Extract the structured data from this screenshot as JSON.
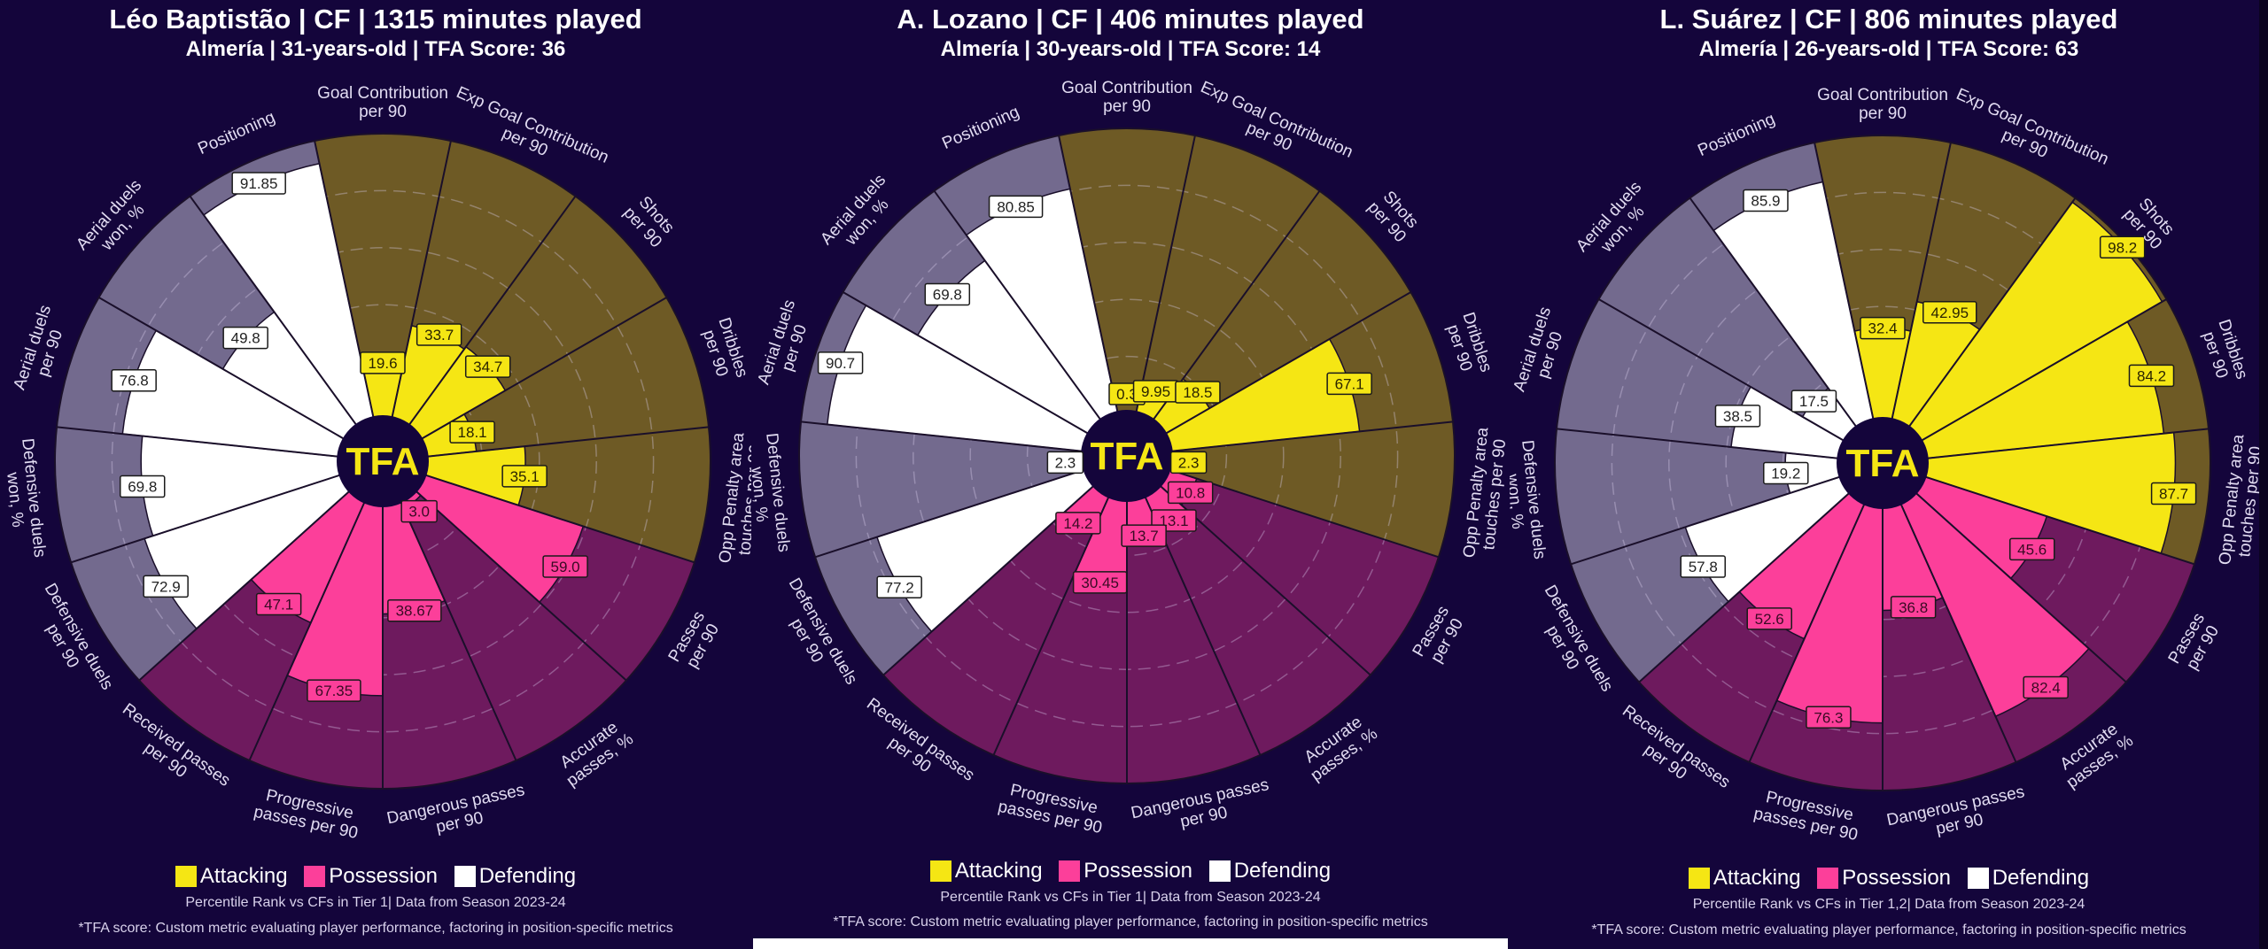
{
  "colors": {
    "background": "#14053b",
    "attacking": "#f5e614",
    "attacking_bg": "#6e5a25",
    "possession": "#fc3f9a",
    "possession_bg": "#6e1a5e",
    "defending": "#ffffff",
    "defending_bg": "#736a8e",
    "label_text": "#e2dcf2",
    "slice_border": "#1a0f2a"
  },
  "legend": [
    {
      "label": "Attacking",
      "color": "#f5e614"
    },
    {
      "label": "Possession",
      "color": "#fc3f9a"
    },
    {
      "label": "Defending",
      "color": "#ffffff"
    }
  ],
  "logo_text": "TFA",
  "footnote": "*TFA score: Custom metric evaluating player performance, factoring in position-specific metrics",
  "chart_data": [
    {
      "type": "pizza",
      "title": "Léo Baptistão | CF | 1315 minutes played",
      "subtitle": "Almería | 31-years-old | TFA Score: 36",
      "source_note": "Percentile Rank vs CFs in Tier 1| Data from Season 2023-24",
      "range": [
        0,
        100
      ],
      "metrics": [
        {
          "label": "Goal Contribution\nper 90",
          "value": 19.6,
          "group": "attacking"
        },
        {
          "label": "Exp Goal Contribution\nper 90",
          "value": 33.7,
          "group": "attacking"
        },
        {
          "label": "Shots\nper 90",
          "value": 34.7,
          "group": "attacking"
        },
        {
          "label": "Dribbles\nper 90",
          "value": 18.1,
          "group": "attacking"
        },
        {
          "label": "Opp Penalty area\ntouches per 90",
          "value": 35.1,
          "group": "attacking"
        },
        {
          "label": "Passes\nper 90",
          "value": 59.0,
          "display": "59.0",
          "group": "possession"
        },
        {
          "label": "Accurate\npasses, %",
          "value": 3.0,
          "display": "3.0",
          "group": "possession"
        },
        {
          "label": "Dangerous passes\nper 90",
          "value": 38.67,
          "group": "possession"
        },
        {
          "label": "Progressive\npasses per 90",
          "value": 67.35,
          "group": "possession"
        },
        {
          "label": "Received passes\nper 90",
          "value": 47.1,
          "group": "possession"
        },
        {
          "label": "Defensive duels\nper 90",
          "value": 72.9,
          "group": "defending"
        },
        {
          "label": "Defensive duels\nwon, %",
          "value": 69.8,
          "group": "defending"
        },
        {
          "label": "Aerial duels\nper 90",
          "value": 76.8,
          "group": "defending"
        },
        {
          "label": "Aerial duels\nwon, %",
          "value": 49.8,
          "group": "defending"
        },
        {
          "label": "Positioning",
          "value": 91.85,
          "group": "defending"
        }
      ]
    },
    {
      "type": "pizza",
      "title": "A. Lozano | CF | 406 minutes played",
      "subtitle": "Almería | 30-years-old | TFA Score: 14",
      "source_note": "Percentile Rank vs CFs in Tier 1| Data from Season 2023-24",
      "range": [
        0,
        100
      ],
      "metrics": [
        {
          "label": "Goal Contribution\nper 90",
          "value": 0.3,
          "group": "attacking"
        },
        {
          "label": "Exp Goal Contribution\nper 90",
          "value": 9.95,
          "group": "attacking"
        },
        {
          "label": "Shots\nper 90",
          "value": 18.5,
          "group": "attacking"
        },
        {
          "label": "Dribbles\nper 90",
          "value": 67.1,
          "group": "attacking"
        },
        {
          "label": "Opp Penalty area\ntouches per 90",
          "value": 2.3,
          "group": "attacking"
        },
        {
          "label": "Passes\nper 90",
          "value": 10.8,
          "group": "possession"
        },
        {
          "label": "Accurate\npasses, %",
          "value": 13.1,
          "group": "possession"
        },
        {
          "label": "Dangerous passes\nper 90",
          "value": 13.7,
          "group": "possession"
        },
        {
          "label": "Progressive\npasses per 90",
          "value": 30.45,
          "group": "possession"
        },
        {
          "label": "Received passes\nper 90",
          "value": 14.2,
          "group": "possession"
        },
        {
          "label": "Defensive duels\nper 90",
          "value": 77.2,
          "group": "defending"
        },
        {
          "label": "Defensive duels\nwon, %",
          "value": 2.3,
          "group": "defending"
        },
        {
          "label": "Aerial duels\nper 90",
          "value": 90.7,
          "group": "defending"
        },
        {
          "label": "Aerial duels\nwon, %",
          "value": 69.8,
          "group": "defending"
        },
        {
          "label": "Positioning",
          "value": 80.85,
          "group": "defending"
        }
      ]
    },
    {
      "type": "pizza",
      "title": "L. Suárez | CF | 806 minutes played",
      "subtitle": "Almería | 26-years-old | TFA Score: 63",
      "source_note": "Percentile Rank vs CFs in Tier 1,2| Data from Season 2023-24",
      "range": [
        0,
        100
      ],
      "metrics": [
        {
          "label": "Goal Contribution\nper 90",
          "value": 32.4,
          "group": "attacking"
        },
        {
          "label": "Exp Goal Contribution\nper 90",
          "value": 42.95,
          "group": "attacking"
        },
        {
          "label": "Shots\nper 90",
          "value": 98.2,
          "group": "attacking"
        },
        {
          "label": "Dribbles\nper 90",
          "value": 84.2,
          "group": "attacking"
        },
        {
          "label": "Opp Penalty area\ntouches per 90",
          "value": 87.7,
          "group": "attacking"
        },
        {
          "label": "Passes\nper 90",
          "value": 45.6,
          "group": "possession"
        },
        {
          "label": "Accurate\npasses, %",
          "value": 82.4,
          "group": "possession"
        },
        {
          "label": "Dangerous passes\nper 90",
          "value": 36.8,
          "group": "possession"
        },
        {
          "label": "Progressive\npasses per 90",
          "value": 76.3,
          "group": "possession"
        },
        {
          "label": "Received passes\nper 90",
          "value": 52.6,
          "group": "possession"
        },
        {
          "label": "Defensive duels\nper 90",
          "value": 57.8,
          "group": "defending"
        },
        {
          "label": "Defensive duels\nwon, %",
          "value": 19.2,
          "group": "defending"
        },
        {
          "label": "Aerial duels\nper 90",
          "value": 38.5,
          "group": "defending"
        },
        {
          "label": "Aerial duels\nwon, %",
          "value": 17.5,
          "group": "defending"
        },
        {
          "label": "Positioning",
          "value": 85.9,
          "group": "defending"
        }
      ]
    }
  ]
}
